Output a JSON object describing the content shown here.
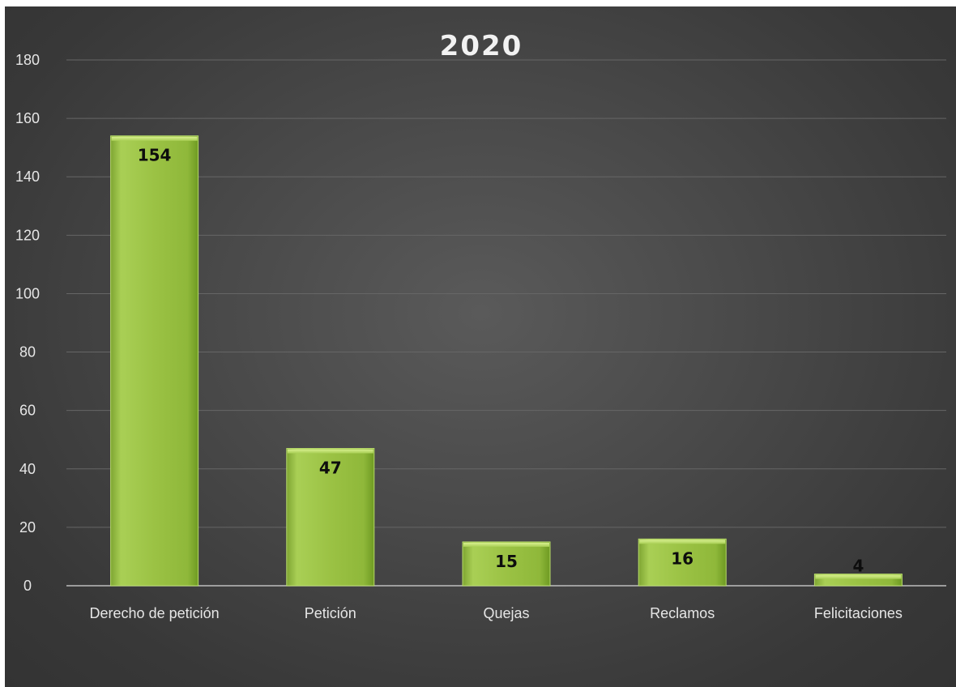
{
  "chart_data": {
    "type": "bar",
    "title": "2020",
    "categories": [
      "Derecho de petición",
      "Petición",
      "Quejas",
      "Reclamos",
      "Felicitaciones"
    ],
    "values": [
      154,
      47,
      15,
      16,
      4
    ],
    "ylim": [
      0,
      180
    ],
    "ytick_step": 20,
    "yticks": [
      "0",
      "20",
      "40",
      "60",
      "80",
      "100",
      "120",
      "140",
      "160",
      "180"
    ],
    "grid": true,
    "legend": "none",
    "colors": {
      "bar": "#9bc244",
      "bar_light": "#c5e37a",
      "bar_dark": "#6e9a22",
      "background": "#474747",
      "grid": "#666666",
      "axis_text": "#e6e6e6",
      "value_text": "#0d0d0d"
    }
  }
}
